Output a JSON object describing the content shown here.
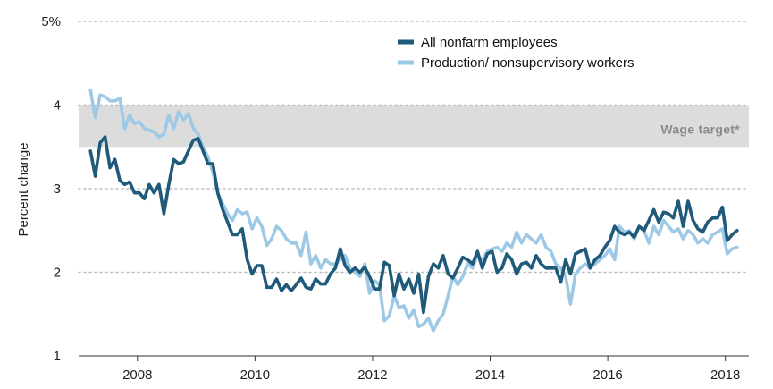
{
  "chart_data": {
    "type": "line",
    "title": "",
    "xlabel": "",
    "ylabel": "Percent change",
    "ylim": [
      1,
      5
    ],
    "xlim": [
      2007.0,
      2018.4
    ],
    "y_ticks": [
      {
        "value": 1,
        "label": "1"
      },
      {
        "value": 2,
        "label": "2"
      },
      {
        "value": 3,
        "label": "3"
      },
      {
        "value": 4,
        "label": "4"
      },
      {
        "value": 5,
        "label": "5%"
      }
    ],
    "x_ticks": [
      {
        "value": 2008,
        "label": "2008"
      },
      {
        "value": 2010,
        "label": "2010"
      },
      {
        "value": 2012,
        "label": "2012"
      },
      {
        "value": 2014,
        "label": "2014"
      },
      {
        "value": 2016,
        "label": "2016"
      },
      {
        "value": 2018,
        "label": "2018"
      }
    ],
    "grid": "horizontal dotted",
    "legend_position": "top-right",
    "band": {
      "label": "Wage target*",
      "y_from": 3.5,
      "y_to": 4.0,
      "color": "#dcdcdc"
    },
    "series": [
      {
        "name": "All nonfarm employees",
        "color": "#1f5a7a",
        "x_start": 2007.2,
        "x_step": 0.08333,
        "values": [
          3.45,
          3.15,
          3.55,
          3.62,
          3.25,
          3.35,
          3.1,
          3.05,
          3.08,
          2.95,
          2.95,
          2.88,
          3.05,
          2.95,
          3.05,
          2.7,
          3.05,
          3.35,
          3.3,
          3.32,
          3.45,
          3.58,
          3.6,
          3.45,
          3.3,
          3.3,
          2.95,
          2.75,
          2.6,
          2.45,
          2.45,
          2.52,
          2.15,
          1.98,
          2.08,
          2.08,
          1.82,
          1.82,
          1.92,
          1.78,
          1.85,
          1.78,
          1.85,
          1.93,
          1.82,
          1.8,
          1.92,
          1.86,
          1.86,
          1.98,
          2.05,
          2.28,
          2.08,
          2.0,
          2.05,
          2.0,
          2.06,
          1.95,
          1.8,
          1.8,
          2.12,
          2.08,
          1.72,
          1.98,
          1.8,
          1.92,
          1.75,
          1.98,
          1.52,
          1.95,
          2.1,
          2.05,
          2.2,
          1.98,
          1.93,
          2.05,
          2.18,
          2.15,
          2.1,
          2.25,
          2.05,
          2.22,
          2.25,
          2.0,
          2.05,
          2.22,
          2.15,
          1.98,
          2.1,
          2.12,
          2.05,
          2.2,
          2.1,
          2.05,
          2.05,
          2.05,
          1.88,
          2.15,
          1.98,
          2.22,
          2.25,
          2.28,
          2.05,
          2.15,
          2.2,
          2.3,
          2.38,
          2.55,
          2.48,
          2.45,
          2.48,
          2.42,
          2.55,
          2.5,
          2.62,
          2.75,
          2.6,
          2.72,
          2.7,
          2.65,
          2.85,
          2.55,
          2.85,
          2.62,
          2.52,
          2.48,
          2.6,
          2.65,
          2.65,
          2.78,
          2.38,
          2.45,
          2.5
        ]
      },
      {
        "name": "Production/ nonsupervisory workers",
        "color": "#9ec9e6",
        "x_start": 2007.2,
        "x_step": 0.08333,
        "values": [
          4.18,
          3.85,
          4.12,
          4.1,
          4.05,
          4.05,
          4.08,
          3.72,
          3.88,
          3.78,
          3.8,
          3.72,
          3.7,
          3.68,
          3.62,
          3.65,
          3.88,
          3.72,
          3.92,
          3.82,
          3.9,
          3.72,
          3.65,
          3.5,
          3.38,
          3.2,
          2.95,
          2.82,
          2.7,
          2.62,
          2.75,
          2.7,
          2.72,
          2.52,
          2.65,
          2.55,
          2.32,
          2.4,
          2.55,
          2.5,
          2.4,
          2.35,
          2.35,
          2.2,
          2.48,
          2.1,
          2.2,
          2.05,
          2.15,
          2.1,
          2.1,
          2.15,
          2.2,
          2.05,
          2.0,
          1.95,
          2.1,
          1.75,
          1.9,
          1.85,
          1.42,
          1.48,
          1.72,
          1.58,
          1.6,
          1.45,
          1.55,
          1.35,
          1.38,
          1.45,
          1.3,
          1.42,
          1.5,
          1.72,
          1.95,
          1.85,
          1.95,
          2.1,
          2.05,
          2.2,
          2.15,
          2.25,
          2.28,
          2.3,
          2.25,
          2.35,
          2.3,
          2.48,
          2.35,
          2.45,
          2.4,
          2.35,
          2.45,
          2.3,
          2.25,
          2.1,
          2.05,
          1.95,
          1.62,
          1.98,
          2.05,
          2.1,
          2.05,
          2.1,
          2.15,
          2.2,
          2.28,
          2.15,
          2.55,
          2.48,
          2.5,
          2.4,
          2.55,
          2.5,
          2.35,
          2.55,
          2.45,
          2.62,
          2.55,
          2.48,
          2.52,
          2.4,
          2.5,
          2.45,
          2.35,
          2.4,
          2.35,
          2.45,
          2.48,
          2.52,
          2.22,
          2.28,
          2.3
        ]
      }
    ]
  }
}
